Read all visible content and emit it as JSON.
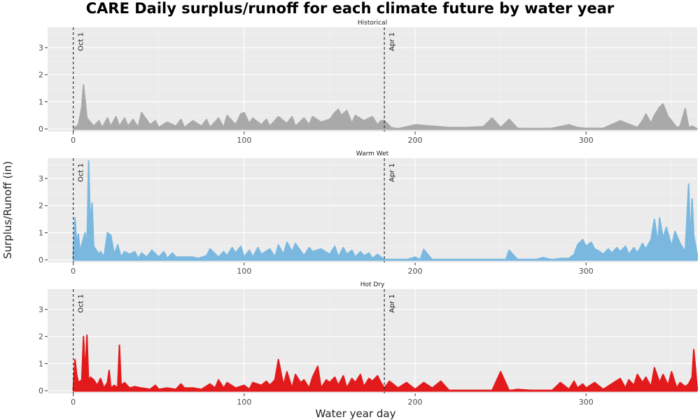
{
  "page": {
    "title": "CARE Daily surplus/runoff for each climate future by water year",
    "ylabel": "Surplus/Runoff (in)",
    "xlabel": "Water year day"
  },
  "chart_data": {
    "type": "area",
    "title": "CARE Daily surplus/runoff for each climate future by water year",
    "xlabel": "Water year day",
    "ylabel": "Surplus/Runoff (in)",
    "xlim": [
      -15,
      365
    ],
    "ylim": [
      -0.1,
      3.75
    ],
    "x_ticks": [
      0,
      100,
      200,
      300
    ],
    "y_ticks": [
      0,
      1,
      2,
      3
    ],
    "grid": true,
    "reference_lines": [
      {
        "x": 0,
        "label": "Oct 1"
      },
      {
        "x": 182,
        "label": "Apr 1"
      }
    ],
    "panels": [
      {
        "name": "Historical",
        "color": "#a9a9a9",
        "x": [
          0,
          3,
          5,
          6,
          8,
          12,
          15,
          17,
          20,
          22,
          25,
          27,
          30,
          32,
          35,
          38,
          40,
          45,
          48,
          50,
          55,
          60,
          63,
          65,
          70,
          75,
          78,
          80,
          85,
          88,
          90,
          95,
          98,
          100,
          103,
          105,
          110,
          113,
          115,
          120,
          125,
          128,
          130,
          135,
          138,
          140,
          145,
          150,
          153,
          155,
          157,
          160,
          163,
          165,
          170,
          175,
          178,
          180,
          182,
          186,
          190,
          200,
          210,
          220,
          230,
          240,
          245,
          250,
          255,
          260,
          270,
          280,
          290,
          295,
          300,
          305,
          310,
          320,
          330,
          333,
          335,
          338,
          340,
          343,
          345,
          348,
          350,
          353,
          355,
          358,
          360,
          362,
          365
        ],
        "y": [
          0,
          0.15,
          0.8,
          1.62,
          0.4,
          0.1,
          0.3,
          0.05,
          0.4,
          0.1,
          0.45,
          0.1,
          0.4,
          0.1,
          0.35,
          0.05,
          0.6,
          0.15,
          0.3,
          0.05,
          0.25,
          0.1,
          0.35,
          0.05,
          0.3,
          0.1,
          0.35,
          0.05,
          0.4,
          0.05,
          0.5,
          0.15,
          0.55,
          0.6,
          0.2,
          0.4,
          0.15,
          0.35,
          0.1,
          0.45,
          0.2,
          0.45,
          0.1,
          0.4,
          0.15,
          0.45,
          0.25,
          0.35,
          0.6,
          0.72,
          0.5,
          0.68,
          0.2,
          0.5,
          0.3,
          0.45,
          0.15,
          0.3,
          0.3,
          0.05,
          0,
          0.15,
          0.1,
          0.05,
          0.05,
          0.08,
          0.4,
          0.05,
          0.35,
          0.02,
          0,
          0.02,
          0.15,
          0.05,
          0.02,
          0.02,
          0.02,
          0.3,
          0.05,
          0.3,
          0.55,
          0.2,
          0.5,
          0.8,
          0.92,
          0.45,
          0.3,
          0.05,
          0.1,
          0.75,
          0.05,
          0.1,
          0
        ]
      },
      {
        "name": "Warm Wet",
        "color": "#7ab8e0",
        "x": [
          0,
          1,
          2,
          3,
          4,
          6,
          7,
          8,
          9,
          10,
          11,
          12,
          14,
          15,
          16,
          18,
          20,
          22,
          24,
          26,
          28,
          30,
          33,
          36,
          38,
          40,
          43,
          46,
          50,
          53,
          55,
          58,
          60,
          65,
          70,
          73,
          78,
          80,
          85,
          88,
          90,
          93,
          95,
          98,
          100,
          103,
          105,
          108,
          110,
          115,
          118,
          120,
          123,
          125,
          128,
          130,
          135,
          138,
          140,
          145,
          150,
          153,
          155,
          158,
          160,
          163,
          165,
          168,
          170,
          173,
          175,
          178,
          180,
          182,
          185,
          190,
          195,
          200,
          203,
          205,
          210,
          220,
          230,
          240,
          250,
          253,
          255,
          260,
          270,
          275,
          280,
          285,
          290,
          293,
          295,
          298,
          300,
          303,
          305,
          308,
          310,
          313,
          315,
          318,
          320,
          323,
          325,
          328,
          330,
          333,
          335,
          338,
          340,
          342,
          343,
          345,
          347,
          350,
          352,
          355,
          358,
          359,
          360,
          361,
          362,
          363,
          365
        ],
        "y": [
          0.2,
          1.55,
          0.6,
          0.95,
          0.3,
          0.8,
          1.0,
          0.3,
          3.65,
          1.2,
          2.1,
          0.5,
          0.3,
          0.2,
          0.3,
          0.1,
          1.0,
          0.9,
          0.2,
          0.55,
          0.1,
          0.3,
          0.2,
          0.3,
          0.05,
          0.25,
          0.1,
          0.35,
          0.1,
          0.3,
          0.05,
          0.25,
          0.1,
          0.1,
          0.1,
          0.05,
          0.15,
          0.4,
          0.1,
          0.3,
          0.15,
          0.45,
          0.25,
          0.5,
          0.1,
          0.35,
          0.1,
          0.45,
          0.2,
          0.4,
          0.1,
          0.55,
          0.2,
          0.65,
          0.3,
          0.6,
          0.15,
          0.45,
          0.3,
          0.4,
          0.2,
          0.5,
          0.1,
          0.45,
          0.2,
          0.35,
          0.1,
          0.3,
          0.15,
          0.25,
          0.05,
          0.2,
          0.1,
          0,
          0,
          0,
          0,
          0.1,
          0,
          0.38,
          0,
          0,
          0,
          0,
          0,
          0,
          0.35,
          0,
          0,
          0.08,
          0,
          0.05,
          0.05,
          0.2,
          0.55,
          0.75,
          0.5,
          0.65,
          0.4,
          0.3,
          0.2,
          0.4,
          0.25,
          0.45,
          0.3,
          0.5,
          0.2,
          0.45,
          0.25,
          0.6,
          0.4,
          0.75,
          1.5,
          0.6,
          1.55,
          0.8,
          1.2,
          0.5,
          1.05,
          0.6,
          0.3,
          1.5,
          2.8,
          0.6,
          2.25,
          0.9,
          0.2
        ]
      },
      {
        "name": "Hot Dry",
        "color": "#e31a1c",
        "x": [
          0,
          1,
          2,
          3,
          5,
          6,
          7,
          8,
          9,
          10,
          12,
          14,
          16,
          18,
          20,
          21,
          22,
          24,
          26,
          27,
          28,
          30,
          33,
          36,
          40,
          45,
          48,
          50,
          55,
          60,
          63,
          65,
          70,
          75,
          80,
          83,
          85,
          88,
          90,
          95,
          100,
          103,
          105,
          110,
          113,
          115,
          118,
          120,
          123,
          125,
          128,
          130,
          133,
          135,
          138,
          140,
          143,
          145,
          148,
          150,
          153,
          155,
          158,
          160,
          163,
          165,
          168,
          170,
          173,
          175,
          178,
          180,
          182,
          185,
          190,
          195,
          200,
          205,
          210,
          215,
          220,
          225,
          230,
          240,
          245,
          250,
          255,
          260,
          270,
          275,
          280,
          285,
          290,
          293,
          295,
          298,
          300,
          305,
          310,
          315,
          320,
          323,
          325,
          328,
          330,
          333,
          335,
          338,
          340,
          343,
          345,
          348,
          350,
          353,
          355,
          358,
          360,
          362,
          363,
          365
        ],
        "y": [
          0.1,
          1.15,
          0.6,
          0.3,
          0.4,
          2.0,
          0.6,
          2.05,
          0.3,
          0.5,
          0.4,
          0.2,
          0.45,
          0.1,
          0.3,
          0.75,
          0.1,
          0.2,
          0.1,
          1.68,
          0.2,
          0.3,
          0.1,
          0.15,
          0.1,
          0.05,
          0.2,
          0.05,
          0.1,
          0.05,
          0.25,
          0.1,
          0.1,
          0.05,
          0.25,
          0.1,
          0.4,
          0.1,
          0.3,
          0.1,
          0.2,
          0.05,
          0.3,
          0.2,
          0.35,
          0.2,
          0.4,
          1.15,
          0.2,
          0.7,
          0.1,
          0.6,
          0.3,
          0.4,
          0.1,
          0.5,
          0.9,
          0.1,
          0.4,
          0.3,
          0.5,
          0.2,
          0.55,
          0.1,
          0.45,
          0.3,
          0.6,
          0.15,
          0.45,
          0.35,
          0.55,
          0.3,
          0.1,
          0.35,
          0.1,
          0.3,
          0.05,
          0.3,
          0.1,
          0.35,
          0,
          0,
          0,
          0,
          0,
          0.7,
          0,
          0.05,
          0,
          0,
          0,
          0.3,
          0.05,
          0.35,
          0.1,
          0.25,
          0.1,
          0.3,
          0.05,
          0.25,
          0.45,
          0.1,
          0.4,
          0.2,
          0.6,
          0.3,
          0.5,
          0.15,
          0.85,
          0.3,
          0.6,
          0.2,
          0.7,
          0.1,
          0.3,
          0.15,
          0.25,
          0.5,
          1.52,
          0.1
        ]
      }
    ]
  }
}
